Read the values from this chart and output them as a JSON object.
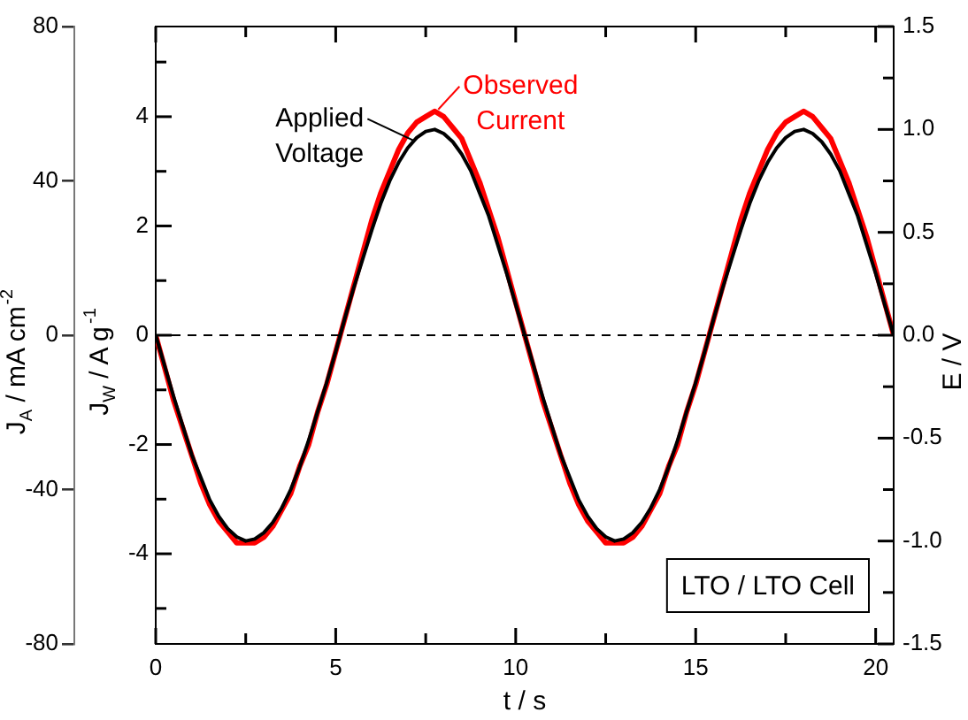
{
  "chart_data": {
    "type": "line",
    "xlabel": "t / s",
    "ylabel": "J$_{A}$ / mA cm$^{-2}$",
    "y3label": "J$_{W}$ / A g$^{-1}$",
    "y2label": "E / V",
    "x": [
      0,
      0.25,
      0.5,
      0.75,
      1,
      1.25,
      1.5,
      1.75,
      2,
      2.25,
      2.5,
      2.75,
      3,
      3.25,
      3.5,
      3.75,
      4,
      4.25,
      4.5,
      4.75,
      5,
      5.25,
      5.5,
      5.75,
      6,
      6.25,
      6.5,
      6.75,
      7,
      7.25,
      7.5,
      7.75,
      8,
      8.25,
      8.5,
      8.75,
      9,
      9.25,
      9.5,
      9.75,
      10,
      10.25,
      10.5,
      10.75,
      11,
      11.25,
      11.5,
      11.75,
      12,
      12.25,
      12.5,
      12.75,
      13,
      13.25,
      13.5,
      13.75,
      14,
      14.25,
      14.5,
      14.75,
      15,
      15.25,
      15.5,
      15.75,
      16,
      16.25,
      16.5,
      16.75,
      17,
      17.25,
      17.5,
      17.75,
      18,
      18.25,
      18.5,
      18.75,
      19,
      19.25,
      19.5,
      19.75,
      20,
      20.25,
      20.5
    ],
    "series": [
      {
        "name": "Applied Voltage",
        "color": "#000000",
        "axis": "y2",
        "values": [
          0,
          -0.15,
          -0.3,
          -0.44,
          -0.58,
          -0.69,
          -0.8,
          -0.88,
          -0.94,
          -0.98,
          -1,
          -0.99,
          -0.96,
          -0.91,
          -0.84,
          -0.75,
          -0.64,
          -0.51,
          -0.37,
          -0.23,
          -0.08,
          0.08,
          0.23,
          0.37,
          0.51,
          0.64,
          0.75,
          0.84,
          0.91,
          0.96,
          0.99,
          1,
          0.98,
          0.94,
          0.88,
          0.8,
          0.69,
          0.58,
          0.44,
          0.3,
          0.15,
          0,
          -0.15,
          -0.3,
          -0.44,
          -0.58,
          -0.69,
          -0.8,
          -0.88,
          -0.94,
          -0.98,
          -1,
          -0.99,
          -0.96,
          -0.91,
          -0.84,
          -0.75,
          -0.64,
          -0.51,
          -0.37,
          -0.23,
          -0.08,
          0.08,
          0.23,
          0.37,
          0.51,
          0.64,
          0.75,
          0.84,
          0.91,
          0.96,
          0.99,
          1,
          0.98,
          0.94,
          0.88,
          0.8,
          0.69,
          0.58,
          0.44,
          0.3,
          0.15,
          0
        ]
      },
      {
        "name": "Observed Current",
        "color": "#ff0000",
        "axis": "y3",
        "values": [
          0,
          -0.6,
          -1.2,
          -1.7,
          -2.2,
          -2.7,
          -3.1,
          -3.4,
          -3.6,
          -3.8,
          -3.8,
          -3.8,
          -3.7,
          -3.5,
          -3.2,
          -2.9,
          -2.4,
          -2,
          -1.4,
          -0.9,
          -0.3,
          0.3,
          0.9,
          1.5,
          2.1,
          2.6,
          3,
          3.4,
          3.7,
          3.9,
          4,
          4.1,
          4,
          3.8,
          3.6,
          3.2,
          2.8,
          2.3,
          1.8,
          1.2,
          0.6,
          0,
          -0.6,
          -1.2,
          -1.7,
          -2.2,
          -2.7,
          -3.1,
          -3.4,
          -3.6,
          -3.8,
          -3.8,
          -3.8,
          -3.7,
          -3.5,
          -3.2,
          -2.9,
          -2.4,
          -2,
          -1.4,
          -0.9,
          -0.3,
          0.3,
          0.9,
          1.5,
          2.1,
          2.6,
          3,
          3.4,
          3.7,
          3.9,
          4,
          4.1,
          4,
          3.8,
          3.6,
          3.2,
          2.8,
          2.3,
          1.8,
          1.2,
          0.6,
          0
        ]
      }
    ],
    "xlim": [
      0,
      20.5
    ],
    "xticks": [
      0,
      {
        "value": 2.5,
        "label": null
      },
      5,
      {
        "value": 7.5,
        "label": null
      },
      10,
      {
        "value": 12.5,
        "label": null
      },
      15,
      {
        "value": 17.5,
        "label": null
      },
      20
    ],
    "ylim": [
      -80,
      80
    ],
    "yticks": [
      -80,
      -40,
      0,
      40,
      80
    ],
    "y3lim": [
      -5.65,
      5.65
    ],
    "y3ticks": [
      {
        "value": -5,
        "label": null
      },
      -4,
      {
        "value": -3,
        "label": null
      },
      -2,
      {
        "value": -1,
        "label": null
      },
      0,
      {
        "value": 1,
        "label": null
      },
      2,
      {
        "value": 3,
        "label": null
      },
      4,
      {
        "value": 5,
        "label": null
      }
    ],
    "y2lim": [
      -1.5,
      1.5
    ],
    "y2ticks": [
      -1.5,
      {
        "value": -1.25,
        "label": null
      },
      {
        "value": -1,
        "label": "-1.0"
      },
      {
        "value": -0.75,
        "label": null
      },
      -0.5,
      {
        "value": -0.25,
        "label": null
      },
      {
        "value": 0,
        "label": "0.0"
      },
      {
        "value": 0.25,
        "label": null
      },
      0.5,
      {
        "value": 0.75,
        "label": null
      },
      {
        "value": 1,
        "label": "1.0"
      },
      {
        "value": 1.25,
        "label": null
      },
      1.5
    ],
    "ref_lines": [
      {
        "axis": "y",
        "value": 0,
        "color": "#000000",
        "line_style": "dashed"
      }
    ],
    "annotations": [
      "LTO / LTO Cell"
    ]
  }
}
